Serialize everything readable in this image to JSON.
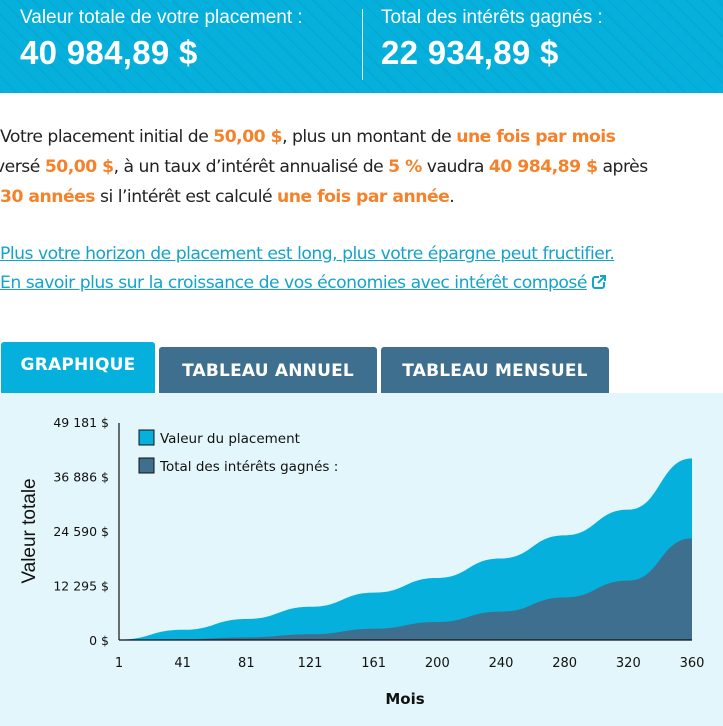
{
  "banner": {
    "total_value_label": "Valeur totale de votre placement :",
    "total_value": "40 984,89 $",
    "interest_label": "Total des intérêts gagnés :",
    "interest_value": "22 934,89 $",
    "color": "#05b1dc"
  },
  "summary": {
    "t1": "Votre placement initial de ",
    "initial": "50,00 $",
    "t2": ", plus un montant de ",
    "frequency": "une fois par mois",
    "t3": " versé ",
    "contribution": "50,00 $",
    "t4": ", à un taux d’intérêt annualisé de ",
    "rate": "5 %",
    "t5": " vaudra ",
    "final_value": "40 984,89 $",
    "t6": " après ",
    "years": "30 années",
    "t7": " si l’intérêt est calculé ",
    "compounding": "une fois par année",
    "t8": ".",
    "highlight_color": "#f5822a"
  },
  "links": {
    "horizon": "Plus votre horizon de placement est long, plus votre épargne peut fructifier.",
    "learn_more": "En savoir plus sur la croissance de vos économies avec intérêt composé"
  },
  "tabs": [
    {
      "label": "GRAPHIQUE",
      "active": true
    },
    {
      "label": "TABLEAU ANNUEL",
      "active": false
    },
    {
      "label": "TABLEAU MENSUEL",
      "active": false
    }
  ],
  "chart_data": {
    "type": "area",
    "title": "",
    "xlabel": "Mois",
    "ylabel": "Valeur totale",
    "x_ticks": [
      "1",
      "41",
      "81",
      "121",
      "161",
      "200",
      "240",
      "280",
      "320",
      "360"
    ],
    "y_ticks": [
      "0 $",
      "12 295 $",
      "24 590 $",
      "36 886 $",
      "49 181 $"
    ],
    "ylim": [
      0,
      49181
    ],
    "xlim": [
      1,
      360
    ],
    "grid": false,
    "legend_position": "top-left",
    "x": [
      1,
      41,
      81,
      121,
      161,
      200,
      240,
      280,
      320,
      360
    ],
    "series": [
      {
        "name": "Valeur du placement",
        "color": "#05b1dc",
        "values": [
          100,
          2300,
          4750,
          7500,
          10700,
          14000,
          18400,
          23600,
          29400,
          40985
        ]
      },
      {
        "name": "Total des intérêts gagnés :",
        "color": "#3e6f8f",
        "values": [
          0,
          200,
          600,
          1300,
          2550,
          4050,
          6400,
          9600,
          13400,
          22935
        ]
      }
    ]
  }
}
